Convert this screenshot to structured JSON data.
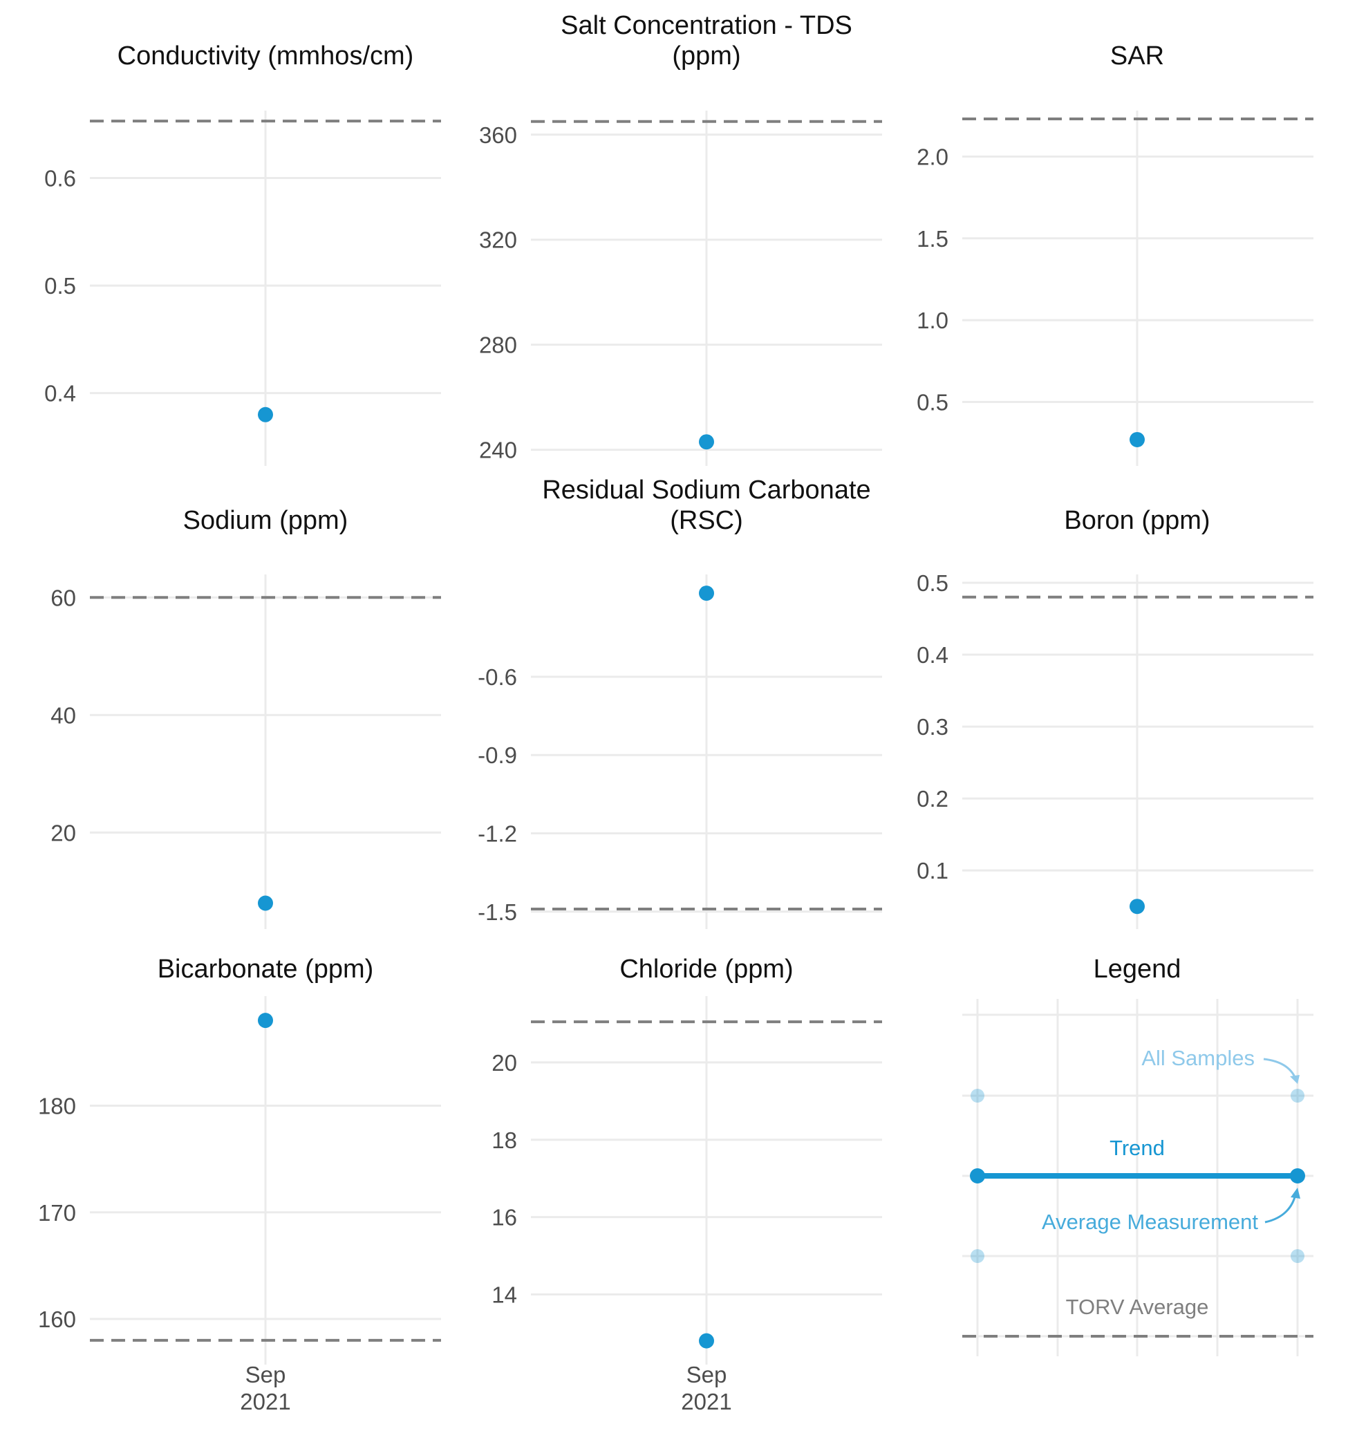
{
  "colors": {
    "point": "#1696d2",
    "light_point": "#a9d4ee",
    "threshold": "#7f7f7f",
    "grid": "#ebebeb",
    "all_samples_label": "#8fc9ea",
    "avg_label": "#46abdb",
    "torv_label": "#7f7f7f"
  },
  "x_axis": {
    "tick_month": "Sep",
    "tick_year": "2021"
  },
  "chart_data": [
    {
      "type": "scatter",
      "title": "Conductivity (mmhos/cm)",
      "title_lines": [
        "Conductivity (mmhos/cm)"
      ],
      "ylim": [
        0.34,
        0.655
      ],
      "yticks": [
        0.4,
        0.5,
        0.6
      ],
      "ytick_labels": [
        "0.4",
        "0.5",
        "0.6"
      ],
      "x": [
        "Sep 2021"
      ],
      "values": [
        0.38
      ],
      "torv_average": 0.653,
      "show_x_labels": false
    },
    {
      "type": "scatter",
      "title": "Salt Concentration - TDS (ppm)",
      "title_lines": [
        "Salt Concentration - TDS",
        "(ppm)"
      ],
      "ylim": [
        237,
        366
      ],
      "yticks": [
        240,
        280,
        320,
        360
      ],
      "ytick_labels": [
        "240",
        "280",
        "320",
        "360"
      ],
      "x": [
        "Sep 2021"
      ],
      "values": [
        243
      ],
      "torv_average": 365,
      "show_x_labels": false
    },
    {
      "type": "scatter",
      "title": "SAR",
      "title_lines": [
        "SAR"
      ],
      "ylim": [
        0.16,
        2.23
      ],
      "yticks": [
        0.5,
        1.0,
        1.5,
        2.0
      ],
      "ytick_labels": [
        "0.5",
        "1.0",
        "1.5",
        "2.0"
      ],
      "x": [
        "Sep 2021"
      ],
      "values": [
        0.27
      ],
      "torv_average": 2.23,
      "show_x_labels": false
    },
    {
      "type": "scatter",
      "title": "Sodium (ppm)",
      "title_lines": [
        "Sodium (ppm)"
      ],
      "ylim": [
        5,
        62.5
      ],
      "yticks": [
        20,
        40,
        60
      ],
      "ytick_labels": [
        "20",
        "40",
        "60"
      ],
      "x": [
        "Sep 2021"
      ],
      "values": [
        8
      ],
      "torv_average": 60,
      "show_x_labels": false
    },
    {
      "type": "scatter",
      "title": "Residual Sodium Carbonate (RSC)",
      "title_lines": [
        "Residual Sodium Carbonate",
        "(RSC)"
      ],
      "ylim": [
        -1.535,
        -0.24
      ],
      "yticks": [
        -1.5,
        -1.2,
        -0.9,
        -0.6
      ],
      "ytick_labels": [
        "-1.5",
        "-1.2",
        "-0.9",
        "-0.6"
      ],
      "x": [
        "Sep 2021"
      ],
      "values": [
        -0.28
      ],
      "torv_average": -1.49,
      "show_x_labels": false
    },
    {
      "type": "scatter",
      "title": "Boron (ppm)",
      "title_lines": [
        "Boron (ppm)"
      ],
      "ylim": [
        0.03,
        0.5
      ],
      "yticks": [
        0.1,
        0.2,
        0.3,
        0.4,
        0.5
      ],
      "ytick_labels": [
        "0.1",
        "0.2",
        "0.3",
        "0.4",
        "0.5"
      ],
      "x": [
        "Sep 2021"
      ],
      "values": [
        0.05
      ],
      "torv_average": 0.48,
      "show_x_labels": false
    },
    {
      "type": "scatter",
      "title": "Bicarbonate (ppm)",
      "title_lines": [
        "Bicarbonate (ppm)"
      ],
      "ylim": [
        156.5,
        189.5
      ],
      "yticks": [
        160,
        170,
        180
      ],
      "ytick_labels": [
        "160",
        "170",
        "180"
      ],
      "x": [
        "Sep 2021"
      ],
      "values": [
        188
      ],
      "torv_average": 158,
      "show_x_labels": true
    },
    {
      "type": "scatter",
      "title": "Chloride (ppm)",
      "title_lines": [
        "Chloride (ppm)"
      ],
      "ylim": [
        12.4,
        21.5
      ],
      "yticks": [
        14,
        16,
        18,
        20
      ],
      "ytick_labels": [
        "14",
        "16",
        "18",
        "20"
      ],
      "x": [
        "Sep 2021"
      ],
      "values": [
        12.8
      ],
      "torv_average": 21.05,
      "show_x_labels": true
    }
  ],
  "legend": {
    "title": "Legend",
    "all_samples": "All Samples",
    "trend": "Trend",
    "average_measurement": "Average Measurement",
    "torv_average": "TORV Average"
  }
}
